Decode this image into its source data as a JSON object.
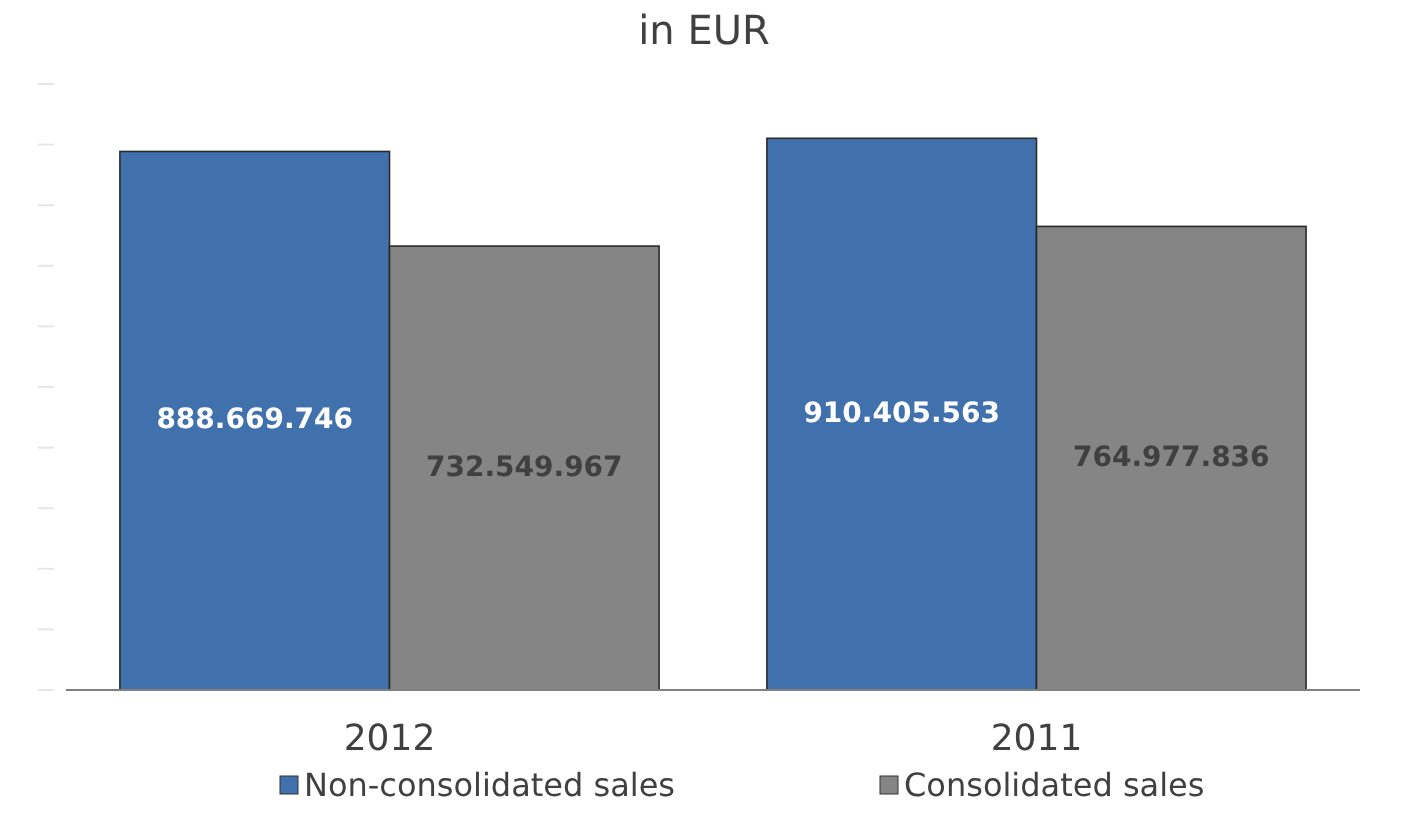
{
  "chart_data": {
    "type": "bar",
    "title": "in EUR",
    "categories": [
      "2012",
      "2011"
    ],
    "series": [
      {
        "name": "Non-consolidated sales",
        "color": "#4071ad",
        "values": [
          888669746,
          910405563
        ],
        "value_labels": [
          "888.669.746",
          "910.405.563"
        ]
      },
      {
        "name": "Consolidated sales",
        "color": "#858585",
        "values": [
          732549967,
          764977836
        ],
        "value_labels": [
          "732.549.967",
          "764.977.836"
        ]
      }
    ],
    "yticks": [
      {
        "value": 0,
        "label": null
      },
      {
        "value": 100000000,
        "label": null
      },
      {
        "value": 200000000,
        "label": null
      },
      {
        "value": 300000000,
        "label": null
      },
      {
        "value": 400000000,
        "label": null
      },
      {
        "value": 500000000,
        "label": null
      },
      {
        "value": 600000000,
        "label": null
      },
      {
        "value": 700000000,
        "label": null
      },
      {
        "value": 800000000,
        "label": null
      },
      {
        "value": 900000000,
        "label": null
      },
      {
        "value": 1000000000,
        "label": null
      }
    ],
    "tick_labels": "x",
    "legend": "bottom"
  }
}
